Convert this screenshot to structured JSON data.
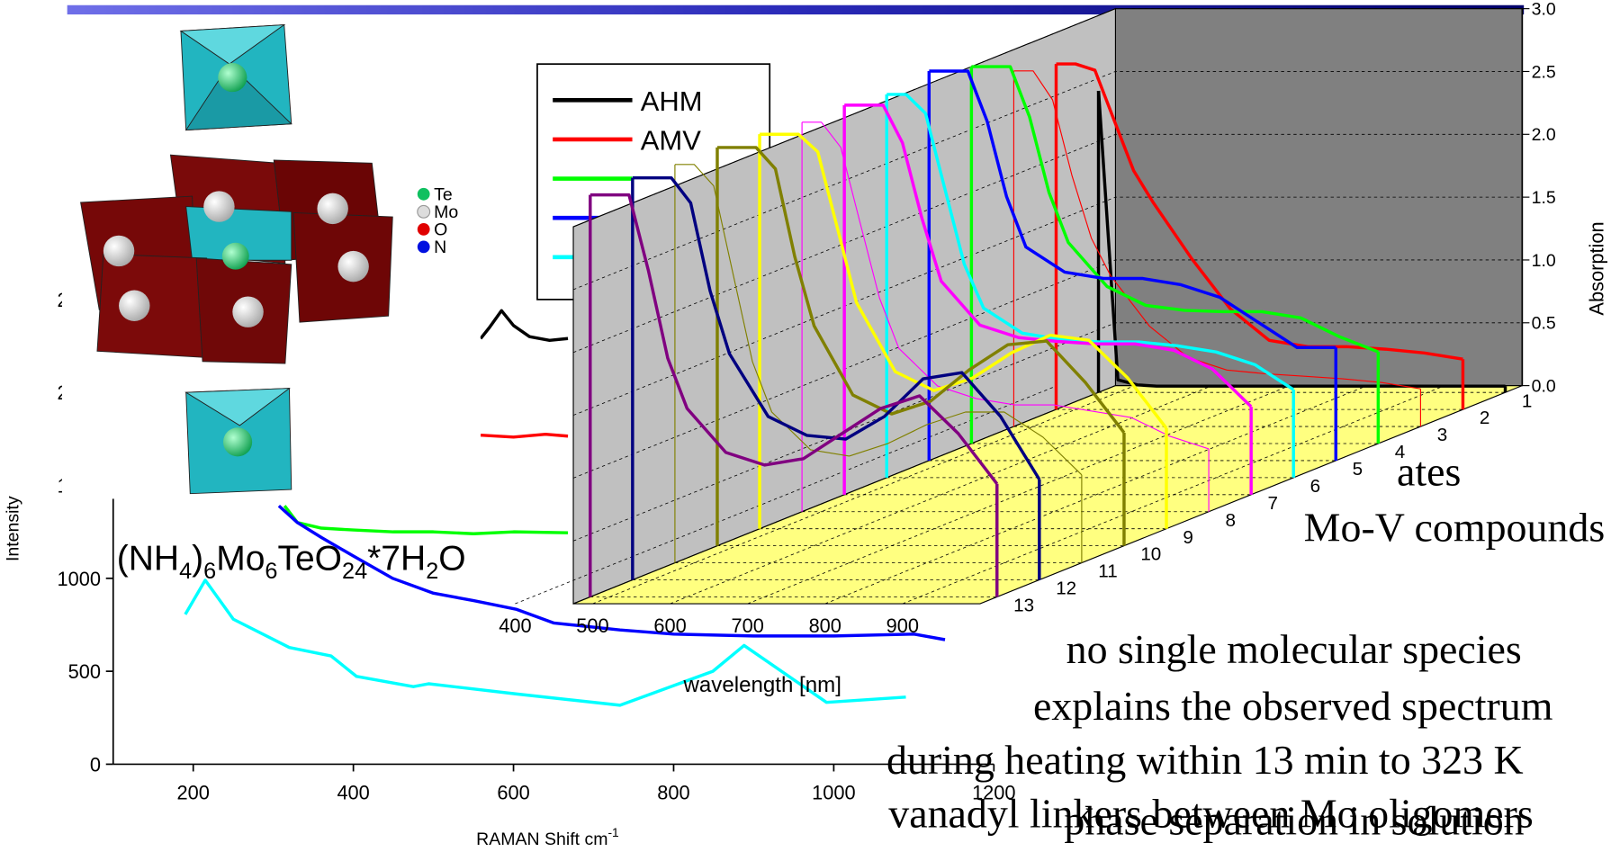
{
  "slide": {
    "texts": [
      "ates",
      "Mo-V compounds",
      "no single molecular species",
      "explains the observed spectrum",
      "during heating within 13 min to 323 K",
      "vanadyl linkers between Mo oligomers",
      "phase separation in solution"
    ],
    "formula": [
      "(NH",
      "4",
      ")",
      "6",
      "Mo",
      "6",
      "TeO",
      "24",
      "*7H",
      "2",
      "O"
    ],
    "structure_legend": [
      "Te",
      "Mo",
      "O",
      "N"
    ]
  },
  "chart_data": [
    {
      "type": "line",
      "x_label": "RAMAN Shift cm",
      "x_label_sup": "-1",
      "y_label": "Intensity",
      "xlim": [
        100,
        1200
      ],
      "xticks": [
        200,
        400,
        600,
        800,
        1000,
        1200
      ],
      "ylim": [
        0,
        2500
      ],
      "yticks": [
        0,
        500,
        1000,
        1500,
        2000,
        2500
      ],
      "series": [
        {
          "name": "AHM",
          "color": "#000000",
          "x": [
            559,
            570,
            585,
            600,
            620,
            645,
            668
          ],
          "values": [
            2290,
            2350,
            2440,
            2360,
            2300,
            2280,
            2290
          ]
        },
        {
          "name": "AMV",
          "color": "#ff0000",
          "x": [
            559,
            600,
            640,
            668
          ],
          "values": [
            1770,
            1760,
            1775,
            1765
          ]
        },
        {
          "color": "#00ff00",
          "x": [
            314,
            330,
            360,
            400,
            450,
            500,
            550,
            600,
            668
          ],
          "values": [
            1390,
            1300,
            1270,
            1260,
            1250,
            1250,
            1240,
            1250,
            1245
          ]
        },
        {
          "color": "#0000ff",
          "x": [
            307,
            330,
            360,
            400,
            449,
            500,
            550,
            604,
            650,
            733,
            800,
            900,
            1000,
            1100,
            1139
          ],
          "values": [
            1390,
            1300,
            1220,
            1120,
            1000,
            920,
            880,
            833,
            760,
            722,
            700,
            690,
            690,
            700,
            670
          ]
        },
        {
          "color": "#00ffff",
          "x": [
            190,
            215,
            250,
            320,
            372,
            404,
            475,
            494,
            604,
            733,
            849,
            888,
            991,
            1090
          ],
          "values": [
            806,
            990,
            780,
            628,
            583,
            472,
            417,
            433,
            378,
            317,
            500,
            639,
            333,
            361
          ]
        }
      ]
    },
    {
      "type": "waterfall3d",
      "x_label": "wavelength [nm]",
      "y_label": "Absorption",
      "x": [
        475,
        500,
        525,
        550,
        575,
        600,
        650,
        700,
        750,
        800,
        850,
        900,
        950,
        1000
      ],
      "xlim": [
        400,
        1000
      ],
      "xticks": [
        400,
        500,
        600,
        700,
        800,
        900
      ],
      "ylim": [
        0,
        3
      ],
      "yticks": [
        {
          "value": 0,
          "label": "0.0"
        },
        {
          "value": 0.5,
          "label": "0.5"
        },
        {
          "value": 1,
          "label": "1.0"
        },
        {
          "value": 1.5,
          "label": "1.5"
        },
        {
          "value": 2,
          "label": "2.0"
        },
        {
          "value": 2.5,
          "label": "2.5"
        },
        {
          "value": 3,
          "label": "3.0"
        }
      ],
      "zticks": [
        1,
        2,
        3,
        4,
        5,
        6,
        7,
        8,
        9,
        10,
        11,
        12,
        13
      ],
      "series": [
        {
          "color": "#000000",
          "width": 3,
          "values": [
            2.4,
            0.1,
            0.06,
            0.05,
            0.05,
            0.05,
            0.05,
            0.05,
            0.05,
            0.05,
            0.05,
            0.05,
            0.05,
            0.05
          ]
        },
        {
          "color": "#ff0000",
          "width": 3,
          "values": [
            2.75,
            2.75,
            2.7,
            2.3,
            1.9,
            1.65,
            1.2,
            0.8,
            0.55,
            0.5,
            0.5,
            0.48,
            0.45,
            0.4
          ]
        },
        {
          "color": "#ff0000",
          "width": 1,
          "values": [
            2.83,
            2.83,
            2.6,
            2.0,
            1.5,
            1.2,
            0.8,
            0.55,
            0.45,
            0.42,
            0.4,
            0.38,
            0.35,
            0.3
          ]
        },
        {
          "color": "#00ff00",
          "width": 3,
          "values": [
            3.0,
            3.0,
            3.0,
            2.6,
            2.0,
            1.6,
            1.25,
            1.1,
            1.06,
            1.05,
            1.05,
            1.0,
            0.85,
            0.73
          ]
        },
        {
          "color": "#0000ff",
          "width": 3,
          "values": [
            3.1,
            3.1,
            3.1,
            2.7,
            2.1,
            1.7,
            1.5,
            1.45,
            1.45,
            1.4,
            1.3,
            1.1,
            0.9,
            0.9
          ]
        },
        {
          "color": "#00ffff",
          "width": 3,
          "values": [
            3.05,
            3.05,
            2.9,
            2.3,
            1.7,
            1.35,
            1.15,
            1.1,
            1.08,
            1.08,
            1.05,
            1.0,
            0.9,
            0.7
          ]
        },
        {
          "color": "#ff00ff",
          "width": 3,
          "values": [
            3.1,
            3.1,
            3.1,
            2.8,
            2.2,
            1.7,
            1.35,
            1.25,
            1.22,
            1.2,
            1.2,
            1.15,
            1.0,
            0.7
          ]
        },
        {
          "color": "#ff00ff",
          "width": 1,
          "values": [
            3.1,
            3.1,
            2.9,
            2.3,
            1.7,
            1.3,
            1.0,
            0.9,
            0.85,
            0.85,
            0.8,
            0.75,
            0.6,
            0.5
          ]
        },
        {
          "color": "#ffff00",
          "width": 3,
          "values": [
            3.14,
            3.14,
            3.14,
            3.0,
            2.4,
            1.8,
            1.25,
            1.1,
            1.2,
            1.4,
            1.54,
            1.5,
            1.2,
            0.8
          ]
        },
        {
          "color": "#808000",
          "width": 3,
          "values": [
            3.17,
            3.17,
            3.17,
            3.0,
            2.3,
            1.75,
            1.2,
            1.05,
            1.15,
            1.4,
            1.6,
            1.63,
            1.3,
            0.9
          ]
        },
        {
          "color": "#808000",
          "width": 1,
          "values": [
            3.17,
            3.17,
            3.0,
            2.3,
            1.6,
            1.2,
            0.9,
            0.85,
            0.95,
            1.1,
            1.2,
            1.2,
            1.0,
            0.7
          ]
        },
        {
          "color": "#000080",
          "width": 3,
          "values": [
            3.2,
            3.2,
            3.2,
            3.0,
            2.3,
            1.8,
            1.3,
            1.15,
            1.12,
            1.3,
            1.6,
            1.65,
            1.3,
            0.8
          ]
        },
        {
          "color": "#800080",
          "width": 3,
          "values": [
            3.2,
            3.2,
            3.2,
            2.6,
            1.9,
            1.5,
            1.15,
            1.05,
            1.1,
            1.3,
            1.5,
            1.6,
            1.3,
            0.9
          ]
        }
      ]
    }
  ]
}
